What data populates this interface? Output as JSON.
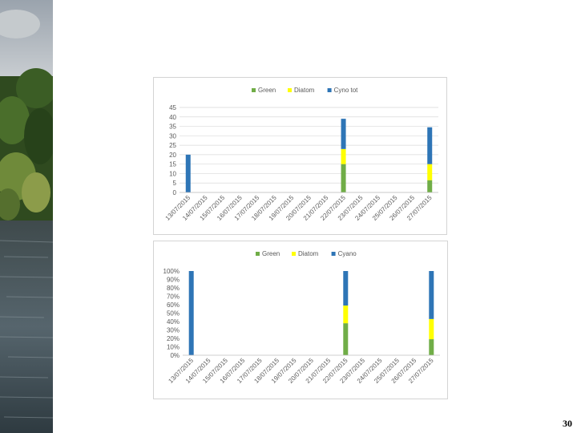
{
  "slide": {
    "page_number": "30",
    "accent_colors": {
      "green": "#70ad47",
      "yellow": "#ffff00",
      "blue": "#2e75b6"
    }
  },
  "chart_data": [
    {
      "type": "bar",
      "stacked": true,
      "categories": [
        "13/07/2015",
        "14/07/2015",
        "15/07/2015",
        "16/07/2015",
        "17/07/2015",
        "18/07/2015",
        "19/07/2015",
        "20/07/2015",
        "21/07/2015",
        "22/07/2015",
        "23/07/2015",
        "24/07/2015",
        "25/07/2015",
        "26/07/2015",
        "27/07/2015"
      ],
      "series": [
        {
          "name": "Green",
          "color": "#70ad47",
          "values": [
            0,
            0,
            0,
            0,
            0,
            0,
            0,
            0,
            0,
            15,
            0,
            0,
            0,
            0,
            6.5
          ]
        },
        {
          "name": "Diatom",
          "color": "#ffff00",
          "values": [
            0,
            0,
            0,
            0,
            0,
            0,
            0,
            0,
            0,
            8,
            0,
            0,
            0,
            0,
            8.5
          ]
        },
        {
          "name": "Cyno tot",
          "color": "#2e75b6",
          "values": [
            20,
            0,
            0,
            0,
            0,
            0,
            0,
            0,
            0,
            16,
            0,
            0,
            0,
            0,
            19.5
          ]
        }
      ],
      "ylim": [
        0,
        45
      ],
      "yticks": [
        "0",
        "5",
        "10",
        "15",
        "20",
        "25",
        "30",
        "35",
        "40",
        "45"
      ],
      "ytick_values": [
        0,
        5,
        10,
        15,
        20,
        25,
        30,
        35,
        40,
        45
      ],
      "grid": true,
      "legend": "top"
    },
    {
      "type": "bar",
      "stacked": true,
      "percent": true,
      "categories": [
        "13/07/2015",
        "14/07/2015",
        "15/07/2015",
        "16/07/2015",
        "17/07/2015",
        "18/07/2015",
        "19/07/2015",
        "20/07/2015",
        "21/07/2015",
        "22/07/2015",
        "23/07/2015",
        "24/07/2015",
        "25/07/2015",
        "26/07/2015",
        "27/07/2015"
      ],
      "series": [
        {
          "name": "Green",
          "color": "#70ad47",
          "values": [
            0,
            0,
            0,
            0,
            0,
            0,
            0,
            0,
            0,
            38,
            0,
            0,
            0,
            0,
            19
          ]
        },
        {
          "name": "Diatom",
          "color": "#ffff00",
          "values": [
            0,
            0,
            0,
            0,
            0,
            0,
            0,
            0,
            0,
            21,
            0,
            0,
            0,
            0,
            24
          ]
        },
        {
          "name": "Cyano",
          "color": "#2e75b6",
          "values": [
            100,
            0,
            0,
            0,
            0,
            0,
            0,
            0,
            0,
            41,
            0,
            0,
            0,
            0,
            57
          ]
        }
      ],
      "ylim": [
        0,
        100
      ],
      "yticks": [
        "0%",
        "10%",
        "20%",
        "30%",
        "40%",
        "50%",
        "60%",
        "70%",
        "80%",
        "90%",
        "100%"
      ],
      "ytick_values": [
        0,
        10,
        20,
        30,
        40,
        50,
        60,
        70,
        80,
        90,
        100
      ],
      "grid": false,
      "legend": "top"
    }
  ]
}
